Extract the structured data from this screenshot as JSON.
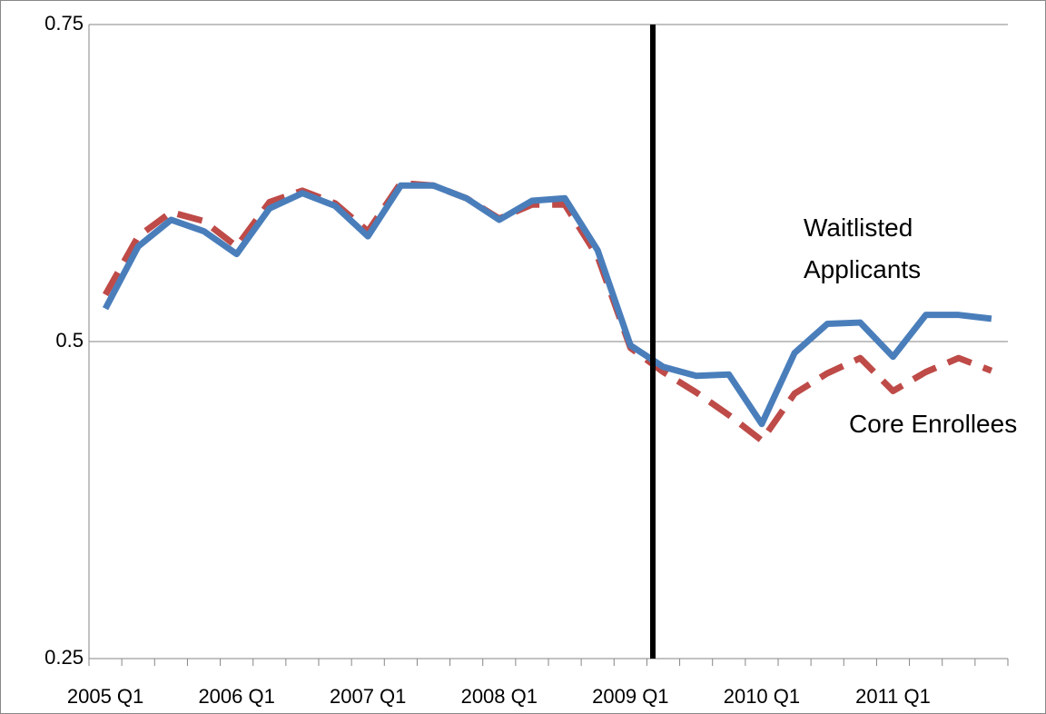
{
  "chart_data": {
    "type": "line",
    "categories": [
      "2005 Q1",
      null,
      null,
      null,
      "2006 Q1",
      null,
      null,
      null,
      "2007 Q1",
      null,
      null,
      null,
      "2008 Q1",
      null,
      null,
      null,
      "2009 Q1",
      null,
      null,
      null,
      "2010 Q1",
      null,
      null,
      null,
      "2011 Q1",
      null,
      null,
      null
    ],
    "series": [
      {
        "name": "Waitlisted Applicants",
        "color": "#4a7ebb",
        "dash": false,
        "values": [
          0.526,
          0.575,
          0.596,
          0.587,
          0.569,
          0.605,
          0.617,
          0.607,
          0.583,
          0.623,
          0.623,
          0.613,
          0.596,
          0.611,
          0.613,
          0.572,
          0.497,
          0.48,
          0.473,
          0.474,
          0.435,
          0.491,
          0.514,
          0.515,
          0.488,
          0.521,
          0.521,
          0.518
        ]
      },
      {
        "name": "Core Enrollees",
        "color": "#be4b48",
        "dash": true,
        "values": [
          0.537,
          0.583,
          0.602,
          0.595,
          0.575,
          0.61,
          0.619,
          0.609,
          0.587,
          0.625,
          0.623,
          0.613,
          0.597,
          0.608,
          0.608,
          0.567,
          0.495,
          0.476,
          0.46,
          0.442,
          0.422,
          0.459,
          0.475,
          0.487,
          0.461,
          0.476,
          0.487,
          0.477
        ]
      }
    ],
    "ylim": [
      0.25,
      0.75
    ],
    "yticks": [
      0.25,
      0.5,
      0.75
    ],
    "grid": true
  }
}
